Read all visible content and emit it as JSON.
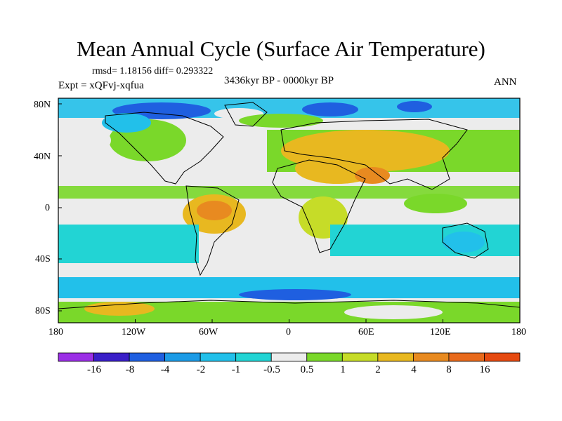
{
  "title": "Mean Annual Cycle (Surface Air Temperature)",
  "stats_line": "rmsd= 1.18156 diff= 0.293322",
  "experiment": "Expt = xQFvj-xqfua",
  "period": "3436kyr BP - 0000kyr BP",
  "season": "ANN",
  "axes": {
    "x_ticks": [
      "180",
      "120W",
      "60W",
      "0",
      "60E",
      "120E",
      "180"
    ],
    "y_ticks": [
      "80N",
      "40N",
      "0",
      "40S",
      "80S"
    ]
  },
  "colorbar": {
    "labels": [
      "-16",
      "-8",
      "-4",
      "-2",
      "-1",
      "-0.5",
      "0.5",
      "1",
      "2",
      "4",
      "8",
      "16"
    ],
    "colors": [
      "#9b2fe6",
      "#3a1fc8",
      "#1f5fe0",
      "#1c9be6",
      "#22c0ea",
      "#22d4d4",
      "#ececec",
      "#7ad82a",
      "#c6dc28",
      "#e8b820",
      "#e88a20",
      "#e86a1c",
      "#e64a10"
    ]
  }
}
